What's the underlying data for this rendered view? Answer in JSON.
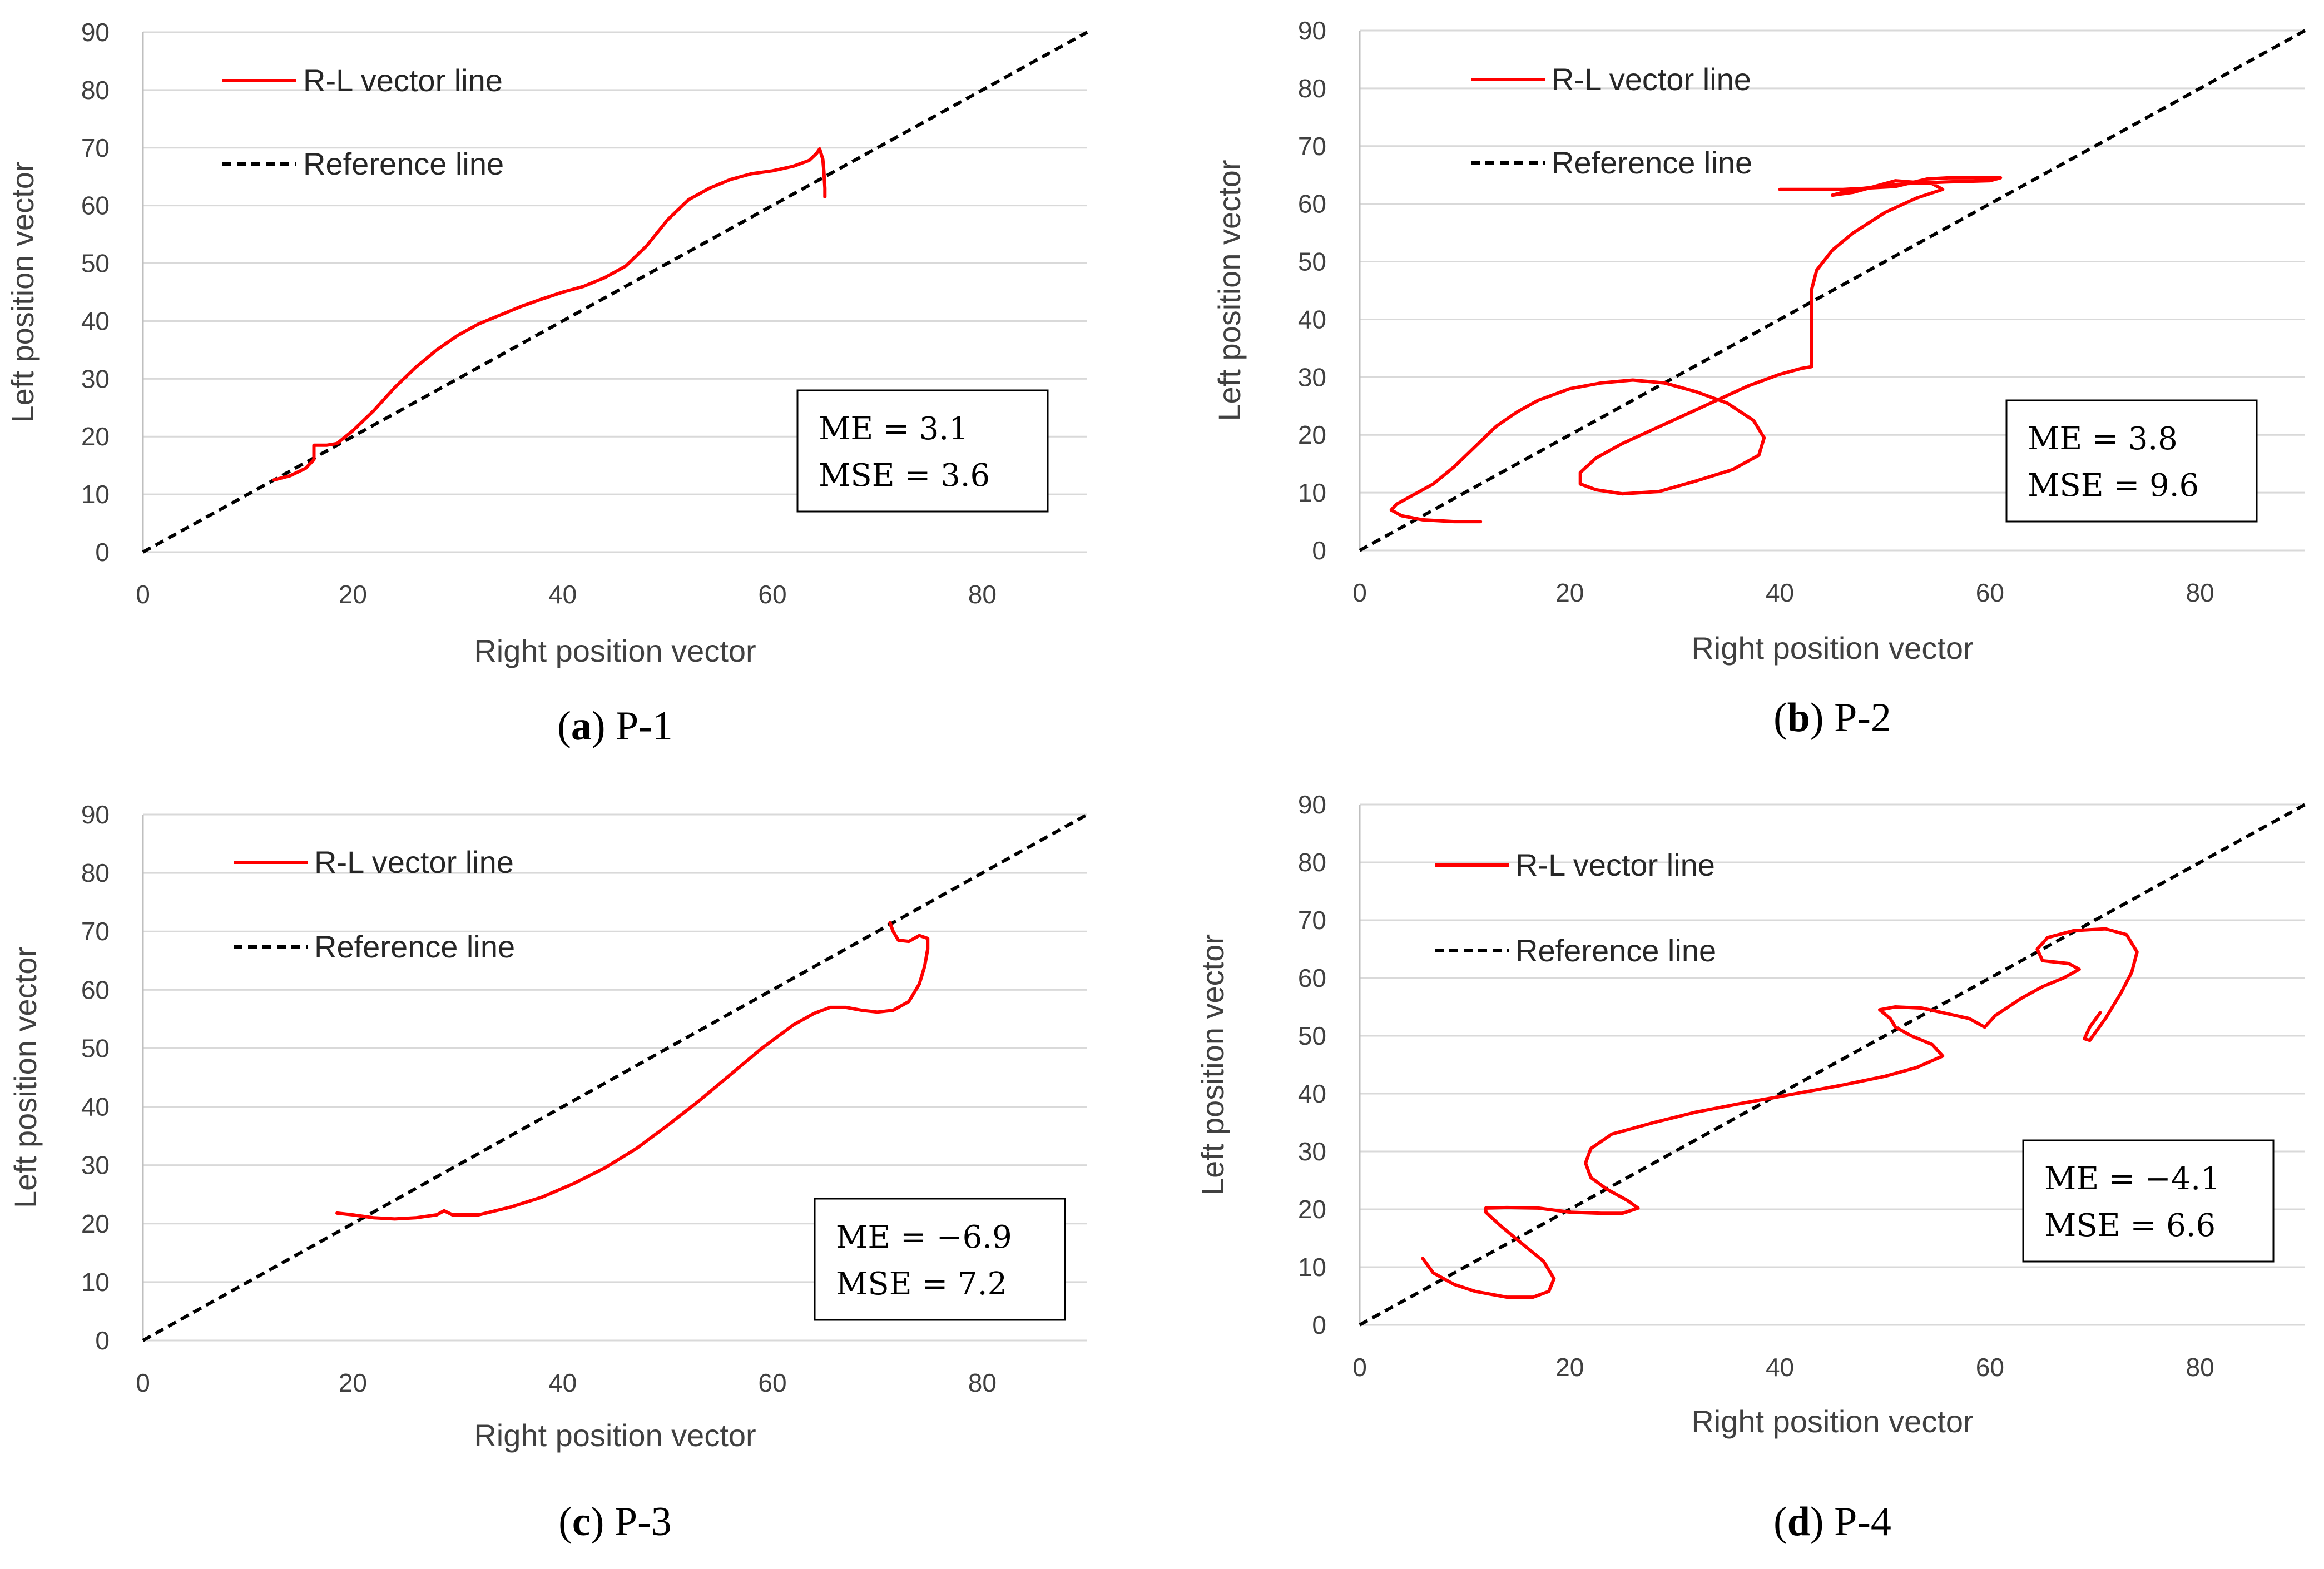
{
  "figure": {
    "panels": [
      "a",
      "b",
      "c",
      "d"
    ]
  },
  "chart_data": [
    {
      "type": "line",
      "caption_label": "a",
      "caption_text": "P-1",
      "xlabel": "Right position vector",
      "ylabel": "Left position vector",
      "xlim": [
        0,
        90
      ],
      "ylim": [
        0,
        90
      ],
      "xticks": [
        0,
        20,
        40,
        60,
        80
      ],
      "yticks": [
        0,
        10,
        20,
        30,
        40,
        50,
        60,
        70,
        80,
        90
      ],
      "grid": "horizontal",
      "legend_position": "top-left",
      "series": [
        {
          "name": "R-L vector line",
          "color": "#ff0000",
          "style": "solid",
          "points": [
            [
              12.5,
              12.5
            ],
            [
              14,
              13.2
            ],
            [
              15.5,
              14.5
            ],
            [
              16.3,
              16.0
            ],
            [
              16.3,
              18.5
            ],
            [
              17.5,
              18.5
            ],
            [
              18.5,
              18.8
            ],
            [
              20,
              21
            ],
            [
              22,
              24.5
            ],
            [
              24,
              28.5
            ],
            [
              26,
              32
            ],
            [
              28,
              35
            ],
            [
              30,
              37.5
            ],
            [
              32,
              39.5
            ],
            [
              34,
              41
            ],
            [
              36,
              42.5
            ],
            [
              38,
              43.8
            ],
            [
              40,
              45
            ],
            [
              42,
              46
            ],
            [
              44,
              47.5
            ],
            [
              46,
              49.5
            ],
            [
              48,
              53
            ],
            [
              50,
              57.5
            ],
            [
              52,
              61
            ],
            [
              54,
              63
            ],
            [
              56,
              64.5
            ],
            [
              58,
              65.5
            ],
            [
              60,
              66
            ],
            [
              62,
              66.8
            ],
            [
              63.5,
              67.8
            ],
            [
              64.2,
              69
            ],
            [
              64.5,
              69.8
            ],
            [
              64.8,
              68
            ],
            [
              64.9,
              66
            ],
            [
              65,
              63
            ],
            [
              65,
              61.5
            ]
          ]
        },
        {
          "name": "Reference line",
          "color": "#000000",
          "style": "dashed",
          "points": [
            [
              0,
              0
            ],
            [
              90,
              90
            ]
          ]
        }
      ],
      "annotations": {
        "me_label": "ME = 3.1",
        "mse_label": "MSE = 3.6"
      }
    },
    {
      "type": "line",
      "caption_label": "b",
      "caption_text": "P-2",
      "xlabel": "Right position vector",
      "ylabel": "Left position vector",
      "xlim": [
        0,
        90
      ],
      "ylim": [
        0,
        90
      ],
      "xticks": [
        0,
        20,
        40,
        60,
        80
      ],
      "yticks": [
        0,
        10,
        20,
        30,
        40,
        50,
        60,
        70,
        80,
        90
      ],
      "grid": "horizontal",
      "legend_position": "top-left",
      "series": [
        {
          "name": "R-L vector line",
          "color": "#ff0000",
          "style": "solid",
          "points": [
            [
              11.5,
              5
            ],
            [
              9,
              5
            ],
            [
              6,
              5.3
            ],
            [
              4,
              6
            ],
            [
              3,
              7
            ],
            [
              3.5,
              8
            ],
            [
              5,
              9.5
            ],
            [
              7,
              11.5
            ],
            [
              9,
              14.5
            ],
            [
              11,
              18
            ],
            [
              13,
              21.5
            ],
            [
              15,
              24
            ],
            [
              17,
              26
            ],
            [
              20,
              28
            ],
            [
              23,
              29
            ],
            [
              26,
              29.5
            ],
            [
              29,
              29
            ],
            [
              32,
              27.5
            ],
            [
              35,
              25.5
            ],
            [
              37.5,
              22.5
            ],
            [
              38.5,
              19.5
            ],
            [
              38,
              16.5
            ],
            [
              35.5,
              14
            ],
            [
              32,
              12
            ],
            [
              28.5,
              10.2
            ],
            [
              25,
              9.8
            ],
            [
              22.5,
              10.5
            ],
            [
              21,
              11.5
            ],
            [
              21,
              13.5
            ],
            [
              22.5,
              16
            ],
            [
              25,
              18.5
            ],
            [
              28,
              21
            ],
            [
              31,
              23.5
            ],
            [
              34,
              26
            ],
            [
              37,
              28.5
            ],
            [
              40,
              30.5
            ],
            [
              42,
              31.5
            ],
            [
              43,
              31.8
            ],
            [
              43,
              36
            ],
            [
              43,
              40
            ],
            [
              43,
              45
            ],
            [
              43.5,
              48.5
            ],
            [
              45,
              52
            ],
            [
              47,
              55
            ],
            [
              50,
              58.5
            ],
            [
              53,
              61
            ],
            [
              55.5,
              62.5
            ],
            [
              54.5,
              63.5
            ],
            [
              51,
              64
            ],
            [
              47,
              62
            ],
            [
              45,
              61.5
            ],
            [
              47,
              62.5
            ],
            [
              52,
              63.5
            ],
            [
              56,
              63.8
            ],
            [
              60,
              64
            ],
            [
              61,
              64.5
            ],
            [
              56,
              64.5
            ],
            [
              54,
              64.3
            ],
            [
              51,
              63
            ],
            [
              46,
              62.5
            ],
            [
              42,
              62.5
            ],
            [
              40,
              62.5
            ]
          ]
        },
        {
          "name": "Reference line",
          "color": "#000000",
          "style": "dashed",
          "points": [
            [
              0,
              0
            ],
            [
              90,
              90
            ]
          ]
        }
      ],
      "annotations": {
        "me_label": "ME = 3.8",
        "mse_label": "MSE = 9.6"
      }
    },
    {
      "type": "line",
      "caption_label": "c",
      "caption_text": "P-3",
      "xlabel": "Right position vector",
      "ylabel": "Left position vector",
      "xlim": [
        0,
        90
      ],
      "ylim": [
        0,
        90
      ],
      "xticks": [
        0,
        20,
        40,
        60,
        80
      ],
      "yticks": [
        0,
        10,
        20,
        30,
        40,
        50,
        60,
        70,
        80,
        90
      ],
      "grid": "horizontal",
      "legend_position": "top-left",
      "series": [
        {
          "name": "R-L vector line",
          "color": "#ff0000",
          "style": "solid",
          "points": [
            [
              18.5,
              21.8
            ],
            [
              20,
              21.5
            ],
            [
              22,
              21
            ],
            [
              24,
              20.8
            ],
            [
              26,
              21
            ],
            [
              28,
              21.5
            ],
            [
              28.7,
              22.2
            ],
            [
              29.5,
              21.5
            ],
            [
              32,
              21.5
            ],
            [
              35,
              22.8
            ],
            [
              38,
              24.5
            ],
            [
              41,
              26.8
            ],
            [
              44,
              29.5
            ],
            [
              47,
              32.8
            ],
            [
              50,
              36.8
            ],
            [
              53,
              41
            ],
            [
              56,
              45.5
            ],
            [
              59,
              50
            ],
            [
              62,
              54
            ],
            [
              64,
              56
            ],
            [
              65.5,
              57
            ],
            [
              67,
              57
            ],
            [
              68.5,
              56.5
            ],
            [
              70,
              56.2
            ],
            [
              71.5,
              56.5
            ],
            [
              73,
              58
            ],
            [
              74,
              61
            ],
            [
              74.5,
              64
            ],
            [
              74.8,
              67
            ],
            [
              74.8,
              68.8
            ],
            [
              74,
              69.3
            ],
            [
              73,
              68.3
            ],
            [
              72,
              68.5
            ],
            [
              71.5,
              70
            ],
            [
              71.2,
              71.5
            ]
          ]
        },
        {
          "name": "Reference line",
          "color": "#000000",
          "style": "dashed",
          "points": [
            [
              0,
              0
            ],
            [
              90,
              90
            ]
          ]
        }
      ],
      "annotations": {
        "me_label": "ME = −6.9",
        "mse_label": "MSE = 7.2"
      }
    },
    {
      "type": "line",
      "caption_label": "d",
      "caption_text": "P-4",
      "xlabel": "Right position vector",
      "ylabel": "Left position vector",
      "xlim": [
        0,
        90
      ],
      "ylim": [
        0,
        90
      ],
      "xticks": [
        0,
        20,
        40,
        60,
        80
      ],
      "yticks": [
        0,
        10,
        20,
        30,
        40,
        50,
        60,
        70,
        80,
        90
      ],
      "grid": "horizontal",
      "legend_position": "top-left",
      "series": [
        {
          "name": "R-L vector line",
          "color": "#ff0000",
          "style": "solid",
          "points": [
            [
              6,
              11.5
            ],
            [
              7,
              9
            ],
            [
              9,
              7
            ],
            [
              11,
              5.8
            ],
            [
              14,
              4.8
            ],
            [
              16.5,
              4.8
            ],
            [
              18,
              5.8
            ],
            [
              18.5,
              8
            ],
            [
              17.5,
              11
            ],
            [
              15.5,
              14
            ],
            [
              13.5,
              17
            ],
            [
              12,
              19.5
            ],
            [
              12,
              20.2
            ],
            [
              14,
              20.3
            ],
            [
              17,
              20.2
            ],
            [
              20,
              19.5
            ],
            [
              23,
              19.3
            ],
            [
              25,
              19.3
            ],
            [
              26.5,
              20.2
            ],
            [
              25.5,
              21.5
            ],
            [
              23.5,
              23.5
            ],
            [
              22,
              25.5
            ],
            [
              21.5,
              28
            ],
            [
              22,
              30.5
            ],
            [
              24,
              33
            ],
            [
              28,
              35
            ],
            [
              32,
              36.8
            ],
            [
              36,
              38.2
            ],
            [
              40,
              39.5
            ],
            [
              43,
              40.5
            ],
            [
              46,
              41.5
            ],
            [
              50,
              43
            ],
            [
              53,
              44.5
            ],
            [
              55.5,
              46.5
            ],
            [
              54.5,
              48.5
            ],
            [
              52.5,
              50
            ],
            [
              51,
              51.5
            ],
            [
              50.5,
              53
            ],
            [
              49.5,
              54.5
            ],
            [
              51,
              55
            ],
            [
              53.5,
              54.8
            ],
            [
              56,
              53.8
            ],
            [
              58,
              53
            ],
            [
              59.5,
              51.5
            ],
            [
              60.5,
              53.5
            ],
            [
              63,
              56.5
            ],
            [
              65,
              58.5
            ],
            [
              67,
              60
            ],
            [
              68.5,
              61.5
            ],
            [
              67.5,
              62.5
            ],
            [
              65,
              63
            ],
            [
              64.5,
              65
            ],
            [
              65.5,
              67
            ],
            [
              68,
              68.2
            ],
            [
              71,
              68.5
            ],
            [
              73,
              67.5
            ],
            [
              74,
              64.5
            ],
            [
              73.5,
              61
            ],
            [
              72.5,
              57.5
            ],
            [
              71,
              53
            ],
            [
              69.5,
              49.2
            ],
            [
              69,
              49.5
            ],
            [
              69.5,
              51.5
            ],
            [
              70.5,
              54
            ]
          ]
        },
        {
          "name": "Reference line",
          "color": "#000000",
          "style": "dashed",
          "points": [
            [
              0,
              0
            ],
            [
              90,
              90
            ]
          ]
        }
      ],
      "annotations": {
        "me_label": "ME = −4.1",
        "mse_label": "MSE = 6.6"
      }
    }
  ]
}
